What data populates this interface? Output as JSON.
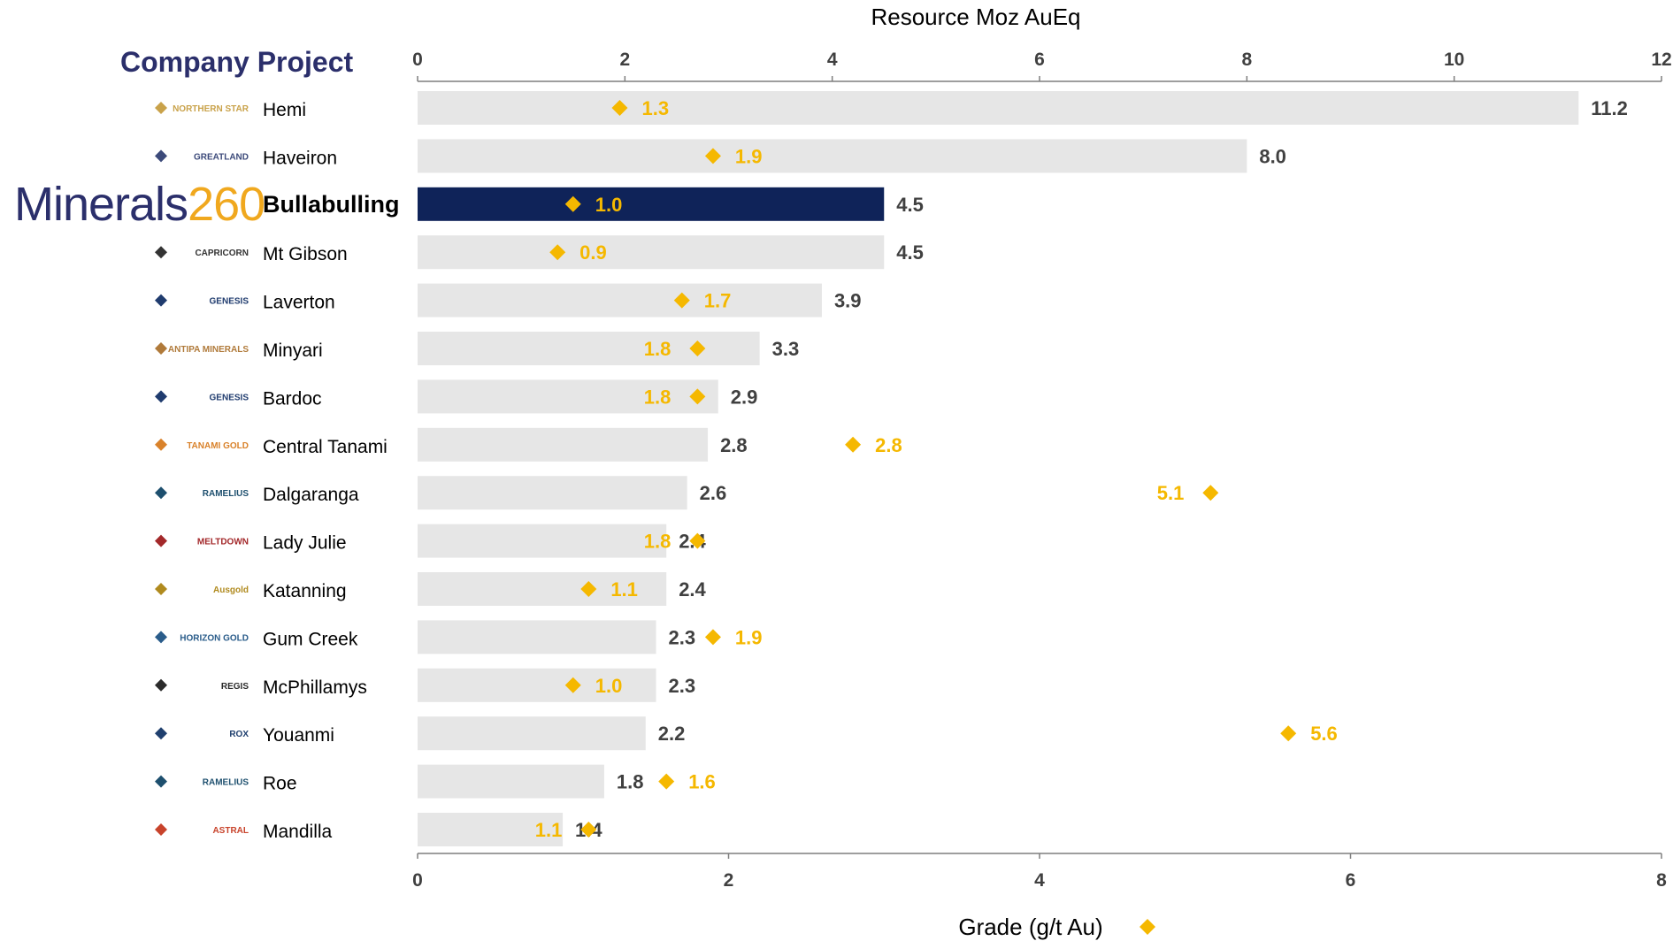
{
  "header": {
    "title": "Company Project"
  },
  "highlight": {
    "brand_main": "Minerals",
    "brand_num": "260"
  },
  "colors": {
    "bar": "#e6e6e6",
    "highlight_bar": "#0f2359",
    "grade": "#f5b800",
    "axis": "#7f7f7f",
    "text": "#000000",
    "value_text": "#404040"
  },
  "chart_data": {
    "type": "bar",
    "orientation": "horizontal",
    "title": "",
    "categories": [
      "Hemi",
      "Haveiron",
      "Bullabulling",
      "Mt Gibson",
      "Laverton",
      "Minyari",
      "Bardoc",
      "Central Tanami",
      "Dalgaranga",
      "Lady Julie",
      "Katanning",
      "Gum Creek",
      "McPhillamys",
      "Youanmi",
      "Roe",
      "Mandilla"
    ],
    "companies": [
      {
        "name": "NORTHERN STAR",
        "icon": "star-logo-icon",
        "color": "#c9a24a"
      },
      {
        "name": "GREATLAND",
        "icon": "greatland-logo-icon",
        "color": "#3c4a7a"
      },
      {
        "name": "Minerals 260",
        "icon": "minerals260-logo-icon",
        "color": "#2b2f6b"
      },
      {
        "name": "CAPRICORN",
        "icon": "capricorn-logo-icon",
        "color": "#333333"
      },
      {
        "name": "GENESIS",
        "icon": "genesis-logo-icon",
        "color": "#1f3b6e"
      },
      {
        "name": "ANTIPA MINERALS",
        "icon": "antipa-logo-icon",
        "color": "#b07a3a"
      },
      {
        "name": "GENESIS",
        "icon": "genesis-logo-icon",
        "color": "#1f3b6e"
      },
      {
        "name": "TANAMI GOLD",
        "icon": "tanami-logo-icon",
        "color": "#d9822b"
      },
      {
        "name": "RAMELIUS",
        "icon": "ramelius-logo-icon",
        "color": "#1d4f6e"
      },
      {
        "name": "MELTDOWN",
        "icon": "m-logo-icon",
        "color": "#a3282a"
      },
      {
        "name": "Ausgold",
        "icon": "ausgold-logo-icon",
        "color": "#b08a1e"
      },
      {
        "name": "HORIZON GOLD",
        "icon": "horizon-logo-icon",
        "color": "#2a5c8a"
      },
      {
        "name": "REGIS",
        "icon": "regis-logo-icon",
        "color": "#2b2b2b"
      },
      {
        "name": "ROX",
        "icon": "rox-logo-icon",
        "color": "#1f3f6e"
      },
      {
        "name": "RAMELIUS",
        "icon": "ramelius-logo-icon",
        "color": "#1d4f6e"
      },
      {
        "name": "ASTRAL",
        "icon": "astral-logo-icon",
        "color": "#c8432b"
      }
    ],
    "highlight_index": 2,
    "series": [
      {
        "name": "Resource Moz AuEq",
        "kind": "bar",
        "values": [
          11.2,
          8.0,
          4.5,
          4.5,
          3.9,
          3.3,
          2.9,
          2.8,
          2.6,
          2.4,
          2.4,
          2.3,
          2.3,
          2.2,
          1.8,
          1.4
        ]
      },
      {
        "name": "Grade (g/t Au)",
        "kind": "diamond",
        "values": [
          1.3,
          1.9,
          1.0,
          0.9,
          1.7,
          1.8,
          1.8,
          2.8,
          5.1,
          1.8,
          1.1,
          1.9,
          1.0,
          5.6,
          1.6,
          1.1
        ]
      }
    ],
    "bar_labels": [
      "11.2",
      "8.0",
      "4.5",
      "4.5",
      "3.9",
      "3.3",
      "2.9",
      "2.8",
      "2.6",
      "2.4",
      "2.4",
      "2.3",
      "2.3",
      "2.2",
      "1.8",
      "1.4"
    ],
    "grade_labels": [
      "1.3",
      "1.9",
      "1.0",
      "0.9",
      "1.7",
      "1.8",
      "1.8",
      "2.8",
      "5.1",
      "1.8",
      "1.1",
      "1.9",
      "1.0",
      "5.6",
      "1.6",
      "1.1"
    ],
    "grade_label_side": [
      "right",
      "right",
      "right",
      "right",
      "right",
      "left",
      "left",
      "right",
      "left",
      "left",
      "right",
      "right",
      "right",
      "right",
      "right",
      "left"
    ],
    "top_axis": {
      "label": "Resource Moz AuEq",
      "range": [
        0,
        12
      ],
      "ticks": [
        "0",
        "2",
        "4",
        "6",
        "8",
        "10",
        "12"
      ]
    },
    "bottom_axis": {
      "label": "Grade (g/t Au)",
      "range": [
        0,
        8
      ],
      "ticks": [
        "0",
        "2",
        "4",
        "6",
        "8"
      ]
    },
    "grid": false
  }
}
